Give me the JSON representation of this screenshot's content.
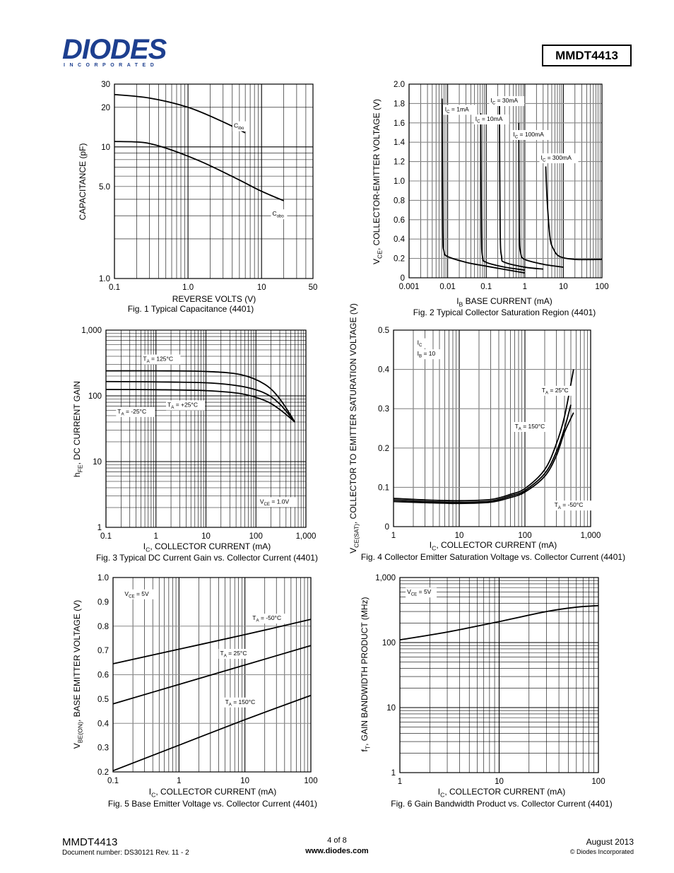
{
  "header": {
    "logo_text": "DIODES",
    "logo_sub": "INCORPORATED",
    "part_number": "MMDT4413"
  },
  "footer": {
    "part": "MMDT4413",
    "doc_number": "Document number: DS30121 Rev. 11 - 2",
    "page": "4 of 8",
    "website": "www.diodes.com",
    "date": "August 2013",
    "copyright": "© Diodes Incorporated"
  },
  "chart_data": [
    {
      "id": "fig1",
      "type": "line",
      "caption": "Fig. 1  Typical Capacitance (4401)",
      "xlabel": "REVERSE VOLTS (V)",
      "ylabel": "CAPACITANCE (pF)",
      "xscale": "log",
      "yscale": "log",
      "xlim": [
        0.1,
        50
      ],
      "ylim": [
        1,
        30
      ],
      "xticks": [
        {
          "v": 0.1,
          "t": "0.1"
        },
        {
          "v": 1,
          "t": "1.0"
        },
        {
          "v": 10,
          "t": "10"
        },
        {
          "v": 50,
          "t": "50"
        }
      ],
      "yticks": [
        {
          "v": 1,
          "t": "1.0"
        },
        {
          "v": 5,
          "t": "5.0"
        },
        {
          "v": 10,
          "t": "10"
        },
        {
          "v": 20,
          "t": "20"
        },
        {
          "v": 30,
          "t": "30"
        }
      ],
      "series": [
        {
          "name": "Cibo",
          "points": [
            [
              0.1,
              25
            ],
            [
              0.3,
              23.5
            ],
            [
              1,
              20
            ],
            [
              3,
              15.5
            ],
            [
              6,
              12.8
            ]
          ]
        },
        {
          "name": "Cobo",
          "points": [
            [
              0.1,
              11
            ],
            [
              0.25,
              10.8
            ],
            [
              0.5,
              9.8
            ],
            [
              1,
              8.5
            ],
            [
              2,
              7.2
            ],
            [
              5,
              5.6
            ],
            [
              10,
              4.6
            ],
            [
              20,
              3.9
            ]
          ]
        }
      ],
      "annotations": [
        {
          "t": "C",
          "sub": "ibo",
          "x": 4.2,
          "y": 14
        },
        {
          "t": "C",
          "sub": "obo",
          "x": 14,
          "y": 3.0
        }
      ]
    },
    {
      "id": "fig2",
      "type": "line",
      "caption": "Fig. 2  Typical Collector Saturation Region (4401)",
      "xlabel": "I_B BASE CURRENT (mA)",
      "ylabel": "V_CE, COLLECTOR-EMITTER VOLTAGE (V)",
      "xscale": "log",
      "yscale": "linear",
      "xlim": [
        0.001,
        100
      ],
      "ylim": [
        0,
        2.0
      ],
      "xticks": [
        {
          "v": 0.001,
          "t": "0.001"
        },
        {
          "v": 0.01,
          "t": "0.01"
        },
        {
          "v": 0.1,
          "t": "0.1"
        },
        {
          "v": 1,
          "t": "1"
        },
        {
          "v": 10,
          "t": "10"
        },
        {
          "v": 100,
          "t": "100"
        }
      ],
      "yticks": [
        {
          "v": 0,
          "t": "0"
        },
        {
          "v": 0.2,
          "t": "0.2"
        },
        {
          "v": 0.4,
          "t": "0.4"
        },
        {
          "v": 0.6,
          "t": "0.6"
        },
        {
          "v": 0.8,
          "t": "0.8"
        },
        {
          "v": 1.0,
          "t": "1.0"
        },
        {
          "v": 1.2,
          "t": "1.2"
        },
        {
          "v": 1.4,
          "t": "1.4"
        },
        {
          "v": 1.6,
          "t": "1.6"
        },
        {
          "v": 1.8,
          "t": "1.8"
        },
        {
          "v": 2.0,
          "t": "2.0"
        }
      ],
      "series": [
        {
          "name": "I_C = 1mA",
          "points": [
            [
              0.0072,
              1.85
            ],
            [
              0.0075,
              0.5
            ],
            [
              0.008,
              0.28
            ],
            [
              0.01,
              0.22
            ],
            [
              0.03,
              0.16
            ],
            [
              0.1,
              0.12
            ],
            [
              1,
              0.05
            ]
          ]
        },
        {
          "name": "I_C = 10mA",
          "points": [
            [
              0.072,
              1.7
            ],
            [
              0.075,
              0.5
            ],
            [
              0.08,
              0.22
            ],
            [
              0.1,
              0.16
            ],
            [
              0.3,
              0.11
            ],
            [
              1,
              0.08
            ]
          ]
        },
        {
          "name": "I_C = 30mA",
          "points": [
            [
              0.22,
              1.85
            ],
            [
              0.23,
              0.5
            ],
            [
              0.25,
              0.22
            ],
            [
              0.3,
              0.16
            ],
            [
              1,
              0.11
            ],
            [
              3,
              0.09
            ]
          ]
        },
        {
          "name": "I_C = 100mA",
          "points": [
            [
              0.7,
              1.6
            ],
            [
              0.72,
              0.5
            ],
            [
              0.78,
              0.26
            ],
            [
              1,
              0.19
            ],
            [
              3,
              0.14
            ],
            [
              10,
              0.11
            ]
          ]
        },
        {
          "name": "I_C = 300mA",
          "points": [
            [
              3.5,
              1.15
            ],
            [
              3.8,
              0.8
            ],
            [
              4.5,
              0.42
            ],
            [
              5.5,
              0.3
            ],
            [
              8,
              0.22
            ],
            [
              20,
              0.19
            ],
            [
              100,
              0.19
            ]
          ]
        }
      ],
      "annotations": [
        {
          "t": "I",
          "sub": "C",
          "rest": " = 1mA",
          "x": 0.0085,
          "y": 1.72
        },
        {
          "t": "I",
          "sub": "C",
          "rest": " = 30mA",
          "x": 0.13,
          "y": 1.81
        },
        {
          "t": "I",
          "sub": "C",
          "rest": " = 10mA",
          "x": 0.052,
          "y": 1.62
        },
        {
          "t": "I",
          "sub": "C",
          "rest": " = 100mA",
          "x": 0.5,
          "y": 1.46
        },
        {
          "t": "I",
          "sub": "C",
          "rest": " = 300mA",
          "x": 2.6,
          "y": 1.22
        }
      ]
    },
    {
      "id": "fig3",
      "type": "line",
      "caption": "Fig. 3  Typical DC Current Gain vs. Collector Current (4401)",
      "xlabel": "I_C, COLLECTOR CURRENT (mA)",
      "ylabel": "h_FE, DC CURRENT GAIN",
      "xscale": "log",
      "yscale": "log",
      "xlim": [
        0.1,
        1000
      ],
      "ylim": [
        1,
        1000
      ],
      "xticks": [
        {
          "v": 0.1,
          "t": "0.1"
        },
        {
          "v": 1,
          "t": "1"
        },
        {
          "v": 10,
          "t": "10"
        },
        {
          "v": 100,
          "t": "100"
        },
        {
          "v": 1000,
          "t": "1,000"
        }
      ],
      "yticks": [
        {
          "v": 1,
          "t": "1"
        },
        {
          "v": 10,
          "t": "10"
        },
        {
          "v": 100,
          "t": "100"
        },
        {
          "v": 1000,
          "t": "1,000"
        }
      ],
      "series": [
        {
          "name": "T_A = 125°C",
          "points": [
            [
              0.1,
              240
            ],
            [
              1,
              240
            ],
            [
              10,
              235
            ],
            [
              50,
              210
            ],
            [
              150,
              150
            ],
            [
              300,
              90
            ],
            [
              600,
              40
            ]
          ]
        },
        {
          "name": "T_A = +25°C",
          "points": [
            [
              0.1,
              165
            ],
            [
              1,
              163
            ],
            [
              10,
              158
            ],
            [
              50,
              140
            ],
            [
              150,
              110
            ],
            [
              300,
              75
            ],
            [
              600,
              40
            ]
          ]
        },
        {
          "name": "T_A = -25°C",
          "points": [
            [
              0.1,
              125
            ],
            [
              1,
              124
            ],
            [
              10,
              120
            ],
            [
              50,
              108
            ],
            [
              150,
              85
            ],
            [
              300,
              62
            ],
            [
              600,
              40
            ]
          ]
        }
      ],
      "annotations": [
        {
          "t": "T",
          "sub": "A",
          "rest": " = 125°C",
          "x": 0.55,
          "y": 340
        },
        {
          "t": "T",
          "sub": "A",
          "rest": " = +25°C",
          "x": 1.7,
          "y": 68
        },
        {
          "t": "T",
          "sub": "A",
          "rest": " = -25°C",
          "x": 0.17,
          "y": 54
        },
        {
          "t": "V",
          "sub": "CE",
          "rest": " = 1.0V",
          "x": 120,
          "y": 2.3
        }
      ]
    },
    {
      "id": "fig4",
      "type": "line",
      "caption": "Fig. 4  Collector Emitter Saturation Voltage vs. Collector Current (4401)",
      "xlabel": "I_C, COLLECTOR CURRENT (mA)",
      "ylabel": "V_CE(SAT), COLLECTOR TO EMITTER SATURATION VOLTAGE (V)",
      "xscale": "log",
      "yscale": "linear",
      "xlim": [
        1,
        1000
      ],
      "ylim": [
        0,
        0.5
      ],
      "xticks": [
        {
          "v": 1,
          "t": "1"
        },
        {
          "v": 10,
          "t": "10"
        },
        {
          "v": 100,
          "t": "100"
        },
        {
          "v": 1000,
          "t": "1,000"
        }
      ],
      "yticks": [
        {
          "v": 0,
          "t": "0"
        },
        {
          "v": 0.1,
          "t": "0.1"
        },
        {
          "v": 0.2,
          "t": "0.2"
        },
        {
          "v": 0.3,
          "t": "0.3"
        },
        {
          "v": 0.4,
          "t": "0.4"
        },
        {
          "v": 0.5,
          "t": "0.5"
        }
      ],
      "series": [
        {
          "name": "T_A = 25°C",
          "points": [
            [
              1,
              0.068
            ],
            [
              3,
              0.064
            ],
            [
              10,
              0.062
            ],
            [
              30,
              0.065
            ],
            [
              60,
              0.078
            ],
            [
              100,
              0.092
            ],
            [
              200,
              0.135
            ],
            [
              300,
              0.19
            ],
            [
              400,
              0.25
            ],
            [
              500,
              0.31
            ]
          ]
        },
        {
          "name": "T_A = 150°C",
          "points": [
            [
              1,
              0.072
            ],
            [
              3,
              0.068
            ],
            [
              10,
              0.066
            ],
            [
              30,
              0.069
            ],
            [
              60,
              0.082
            ],
            [
              100,
              0.097
            ],
            [
              200,
              0.145
            ],
            [
              300,
              0.21
            ],
            [
              400,
              0.28
            ],
            [
              550,
              0.4
            ]
          ]
        },
        {
          "name": "T_A = -50°C",
          "points": [
            [
              1,
              0.064
            ],
            [
              3,
              0.061
            ],
            [
              10,
              0.059
            ],
            [
              30,
              0.062
            ],
            [
              60,
              0.074
            ],
            [
              100,
              0.088
            ],
            [
              200,
              0.128
            ],
            [
              300,
              0.18
            ],
            [
              400,
              0.24
            ],
            [
              550,
              0.29
            ]
          ]
        }
      ],
      "annotations": [
        {
          "t": "T",
          "sub": "A",
          "rest": " = 25°C",
          "x": 180,
          "y": 0.342
        },
        {
          "t": "T",
          "sub": "A",
          "rest": " = 150°C",
          "x": 70,
          "y": 0.25
        },
        {
          "t": "T",
          "sub": "A",
          "rest": " = -50°C",
          "x": 280,
          "y": 0.05
        },
        {
          "t": "I",
          "sub": "C",
          "rest": "",
          "x": 2.3,
          "y": 0.463
        },
        {
          "t": "I",
          "sub": "B",
          "rest": " = 10",
          "x": 2.3,
          "y": 0.435
        }
      ]
    },
    {
      "id": "fig5",
      "type": "line",
      "caption": "Fig. 5  Base Emitter Voltage vs. Collector Current (4401)",
      "xlabel": "I_C, COLLECTOR CURRENT (mA)",
      "ylabel": "V_BE(ON), BASE EMITTER VOLTAGE (V)",
      "xscale": "log",
      "yscale": "linear",
      "xlim": [
        0.1,
        100
      ],
      "ylim": [
        0.2,
        1.0
      ],
      "xticks": [
        {
          "v": 0.1,
          "t": "0.1"
        },
        {
          "v": 1,
          "t": "1"
        },
        {
          "v": 10,
          "t": "10"
        },
        {
          "v": 100,
          "t": "100"
        }
      ],
      "yticks": [
        {
          "v": 0.2,
          "t": "0.2"
        },
        {
          "v": 0.3,
          "t": "0.3"
        },
        {
          "v": 0.4,
          "t": "0.4"
        },
        {
          "v": 0.5,
          "t": "0.5"
        },
        {
          "v": 0.6,
          "t": "0.6"
        },
        {
          "v": 0.7,
          "t": "0.7"
        },
        {
          "v": 0.8,
          "t": "0.8"
        },
        {
          "v": 0.9,
          "t": "0.9"
        },
        {
          "v": 1.0,
          "t": "1.0"
        }
      ],
      "series": [
        {
          "name": "T_A = -50°C",
          "points": [
            [
              0.1,
              0.645
            ],
            [
              1,
              0.705
            ],
            [
              10,
              0.765
            ],
            [
              100,
              0.828
            ]
          ]
        },
        {
          "name": "T_A = 25°C",
          "points": [
            [
              0.1,
              0.48
            ],
            [
              1,
              0.56
            ],
            [
              10,
              0.64
            ],
            [
              100,
              0.72
            ]
          ]
        },
        {
          "name": "T_A = 150°C",
          "points": [
            [
              0.1,
              0.205
            ],
            [
              1,
              0.31
            ],
            [
              10,
              0.415
            ],
            [
              100,
              0.515
            ]
          ]
        }
      ],
      "annotations": [
        {
          "t": "V",
          "sub": "CE",
          "rest": " = 5V",
          "x": 0.15,
          "y": 0.925
        },
        {
          "t": "T",
          "sub": "A",
          "rest": " = -50°C",
          "x": 13,
          "y": 0.825
        },
        {
          "t": "T",
          "sub": "A",
          "rest": " = 25°C",
          "x": 4.2,
          "y": 0.68
        },
        {
          "t": "T",
          "sub": "A",
          "rest": " = 150°C",
          "x": 5,
          "y": 0.48
        }
      ]
    },
    {
      "id": "fig6",
      "type": "line",
      "caption": "Fig. 6  Gain Bandwidth Product vs. Collector Current (4401)",
      "xlabel": "I_C, COLLECTOR CURRENT (mA)",
      "ylabel": "f_T, GAIN BANDWIDTH PRODUCT (MHz)",
      "xscale": "log",
      "yscale": "log",
      "xlim": [
        1,
        100
      ],
      "ylim": [
        1,
        1000
      ],
      "xticks": [
        {
          "v": 1,
          "t": "1"
        },
        {
          "v": 10,
          "t": "10"
        },
        {
          "v": 100,
          "t": "100"
        }
      ],
      "yticks": [
        {
          "v": 1,
          "t": "1"
        },
        {
          "v": 10,
          "t": "10"
        },
        {
          "v": 100,
          "t": "100"
        },
        {
          "v": 1000,
          "t": "1,000"
        }
      ],
      "series": [
        {
          "name": "f_T",
          "points": [
            [
              1,
              110
            ],
            [
              3,
              145
            ],
            [
              10,
              210
            ],
            [
              30,
              300
            ],
            [
              60,
              350
            ],
            [
              100,
              370
            ]
          ]
        }
      ],
      "annotations": [
        {
          "t": "V",
          "sub": "CE",
          "rest": " = 5V",
          "x": 1.18,
          "y": 560
        }
      ]
    }
  ]
}
